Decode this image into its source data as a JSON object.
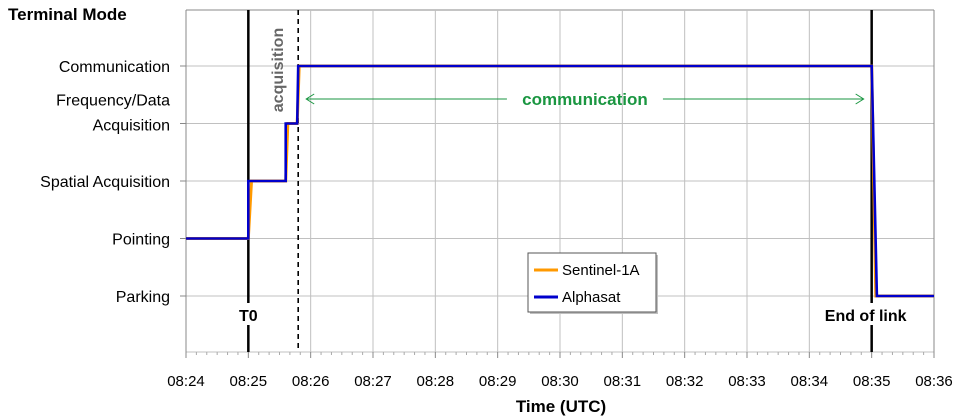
{
  "chart_data": {
    "type": "line",
    "title": "",
    "xlabel": "Time (UTC)",
    "ylabel": "Terminal Mode",
    "x_ticks": [
      "08:24",
      "08:25",
      "08:26",
      "08:27",
      "08:28",
      "08:29",
      "08:30",
      "08:31",
      "08:32",
      "08:33",
      "08:34",
      "08:35",
      "08:36"
    ],
    "xlim": [
      "08:24",
      "08:36"
    ],
    "y_categories": [
      "Parking",
      "Pointing",
      "Spatial Acquisition",
      "Frequency/Data Acquisition",
      "Communication"
    ],
    "y_category_lines": [
      [
        "Parking"
      ],
      [
        "Pointing"
      ],
      [
        "Spatial Acquisition"
      ],
      [
        "Frequency/Data",
        "Acquisition"
      ],
      [
        "Communication"
      ]
    ],
    "grid": true,
    "legend_position": "center-bottom",
    "series": [
      {
        "name": "Sentinel-1A",
        "color": "#ff9900",
        "points": [
          {
            "t": "08:24:00",
            "mode": "Pointing"
          },
          {
            "t": "08:25:00",
            "mode": "Pointing"
          },
          {
            "t": "08:25:03",
            "mode": "Spatial Acquisition"
          },
          {
            "t": "08:25:36",
            "mode": "Spatial Acquisition"
          },
          {
            "t": "08:25:38",
            "mode": "Frequency/Data Acquisition"
          },
          {
            "t": "08:25:47",
            "mode": "Frequency/Data Acquisition"
          },
          {
            "t": "08:25:49",
            "mode": "Communication"
          },
          {
            "t": "08:35:00",
            "mode": "Communication"
          },
          {
            "t": "08:35:04",
            "mode": "Parking"
          },
          {
            "t": "08:36:00",
            "mode": "Parking"
          }
        ]
      },
      {
        "name": "Alphasat",
        "color": "#0000cc",
        "points": [
          {
            "t": "08:24:00",
            "mode": "Pointing"
          },
          {
            "t": "08:25:00",
            "mode": "Pointing"
          },
          {
            "t": "08:25:00",
            "mode": "Spatial Acquisition"
          },
          {
            "t": "08:25:36",
            "mode": "Spatial Acquisition"
          },
          {
            "t": "08:25:36",
            "mode": "Frequency/Data Acquisition"
          },
          {
            "t": "08:25:47",
            "mode": "Frequency/Data Acquisition"
          },
          {
            "t": "08:25:48",
            "mode": "Communication"
          },
          {
            "t": "08:35:00",
            "mode": "Communication"
          },
          {
            "t": "08:35:05",
            "mode": "Parking"
          },
          {
            "t": "08:36:00",
            "mode": "Parking"
          }
        ]
      }
    ],
    "annotations": {
      "t0": {
        "label": "T0",
        "time": "08:25:00"
      },
      "acquisition": {
        "label": "acquisition",
        "time": "08:25:48",
        "color": "#666666"
      },
      "communication": {
        "label": "communication",
        "from": "08:25:48",
        "to": "08:35:00",
        "color": "#1a9641"
      },
      "end_of_link": {
        "label": "End of link",
        "time": "08:35:00"
      }
    }
  }
}
